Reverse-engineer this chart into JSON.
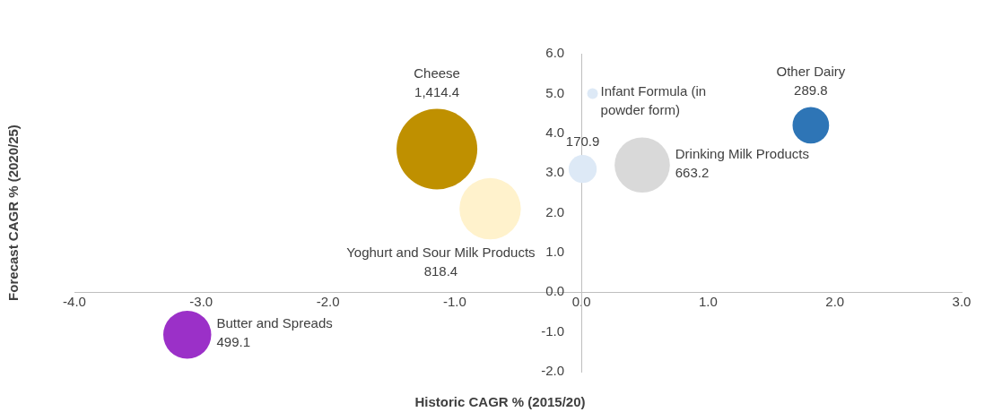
{
  "chart_data": {
    "type": "bubble",
    "xlabel": "Historic CAGR % (2015/20)",
    "ylabel": "Forecast CAGR % (2020/25)",
    "xlim": [
      -4,
      3
    ],
    "ylim": [
      -2,
      6
    ],
    "xticks": [
      {
        "value": -4,
        "label": "-4.0"
      },
      {
        "value": -3,
        "label": "-3.0"
      },
      {
        "value": -2,
        "label": "-2.0"
      },
      {
        "value": -1,
        "label": "-1.0"
      },
      {
        "value": 0,
        "label": "0.0"
      },
      {
        "value": 1,
        "label": "1.0"
      },
      {
        "value": 2,
        "label": "2.0"
      },
      {
        "value": 3,
        "label": "3.0"
      }
    ],
    "yticks": [
      {
        "value": -2,
        "label": "-2.0"
      },
      {
        "value": -1,
        "label": "-1.0"
      },
      {
        "value": 0,
        "label": "0.0"
      },
      {
        "value": 1,
        "label": "1.0"
      },
      {
        "value": 2,
        "label": "2.0"
      },
      {
        "value": 3,
        "label": "3.0"
      },
      {
        "value": 4,
        "label": "4.0"
      },
      {
        "value": 5,
        "label": "5.0"
      },
      {
        "value": 6,
        "label": "6.0"
      }
    ],
    "grid": false,
    "legend": "top",
    "series": [
      {
        "name": "Cheese",
        "color": "#bf9000",
        "x": [
          -1.14
        ],
        "values": [
          3.6
        ],
        "sizes": [
          1414.4
        ],
        "value_labels": [
          "1,414.4"
        ]
      },
      {
        "name": "Infant Formula (in powder form)",
        "color": "#dde9f6",
        "x": [
          0.01
        ],
        "values": [
          3.1
        ],
        "sizes": [
          170.9
        ],
        "value_labels": [
          "170.9"
        ]
      },
      {
        "name": "Other Dairy",
        "color": "#2e75b6",
        "x": [
          1.81
        ],
        "values": [
          4.2
        ],
        "sizes": [
          289.8
        ],
        "value_labels": [
          "289.8"
        ]
      },
      {
        "name": "Drinking Milk Products",
        "color": "#d9d9d9",
        "x": [
          0.48
        ],
        "values": [
          3.2
        ],
        "sizes": [
          663.2
        ],
        "value_labels": [
          "663.2"
        ]
      },
      {
        "name": "Yoghurt and Sour Milk Products",
        "color": "#fff2cc",
        "x": [
          -0.72
        ],
        "values": [
          2.1
        ],
        "sizes": [
          818.4
        ],
        "value_labels": [
          "818.4"
        ]
      },
      {
        "name": "Butter and Spreads",
        "color": "#9b30c8",
        "x": [
          -3.11
        ],
        "values": [
          -1.07
        ],
        "sizes": [
          499.1
        ],
        "value_labels": [
          "499.1"
        ]
      }
    ]
  }
}
